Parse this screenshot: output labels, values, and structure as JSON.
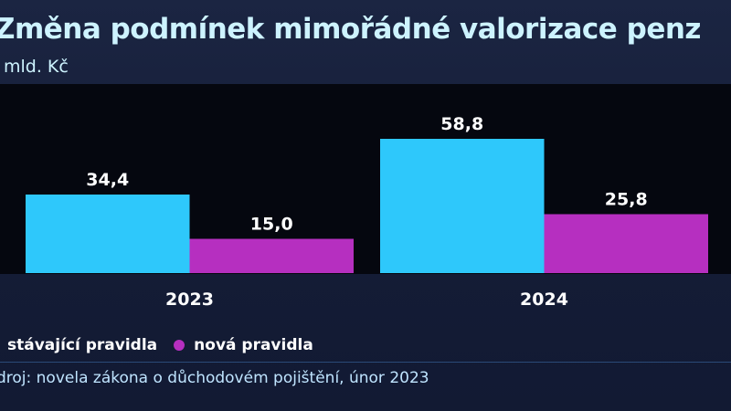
{
  "title": "Změna podmínek mimořádné valorizace penz",
  "unit": "mld. Kč",
  "source": "droj: novela zákona o důchodovém pojištění, únor 2023",
  "chart_data": {
    "type": "bar",
    "title": "Změna podmínek mimořádné valorizace penz",
    "ylabel": "mld. Kč",
    "categories": [
      "2023",
      "2024"
    ],
    "series": [
      {
        "name": "stávající pravidla",
        "color": "#2ec8fb",
        "values": [
          34.4,
          58.8
        ],
        "labels": [
          "34,4",
          "58,8"
        ]
      },
      {
        "name": "nová pravidla",
        "color": "#b62fc0",
        "values": [
          15.0,
          25.8
        ],
        "labels": [
          "15,0",
          "25,8"
        ]
      }
    ],
    "ylim": [
      0,
      60
    ],
    "grid": false,
    "legend": "bottom-left"
  }
}
